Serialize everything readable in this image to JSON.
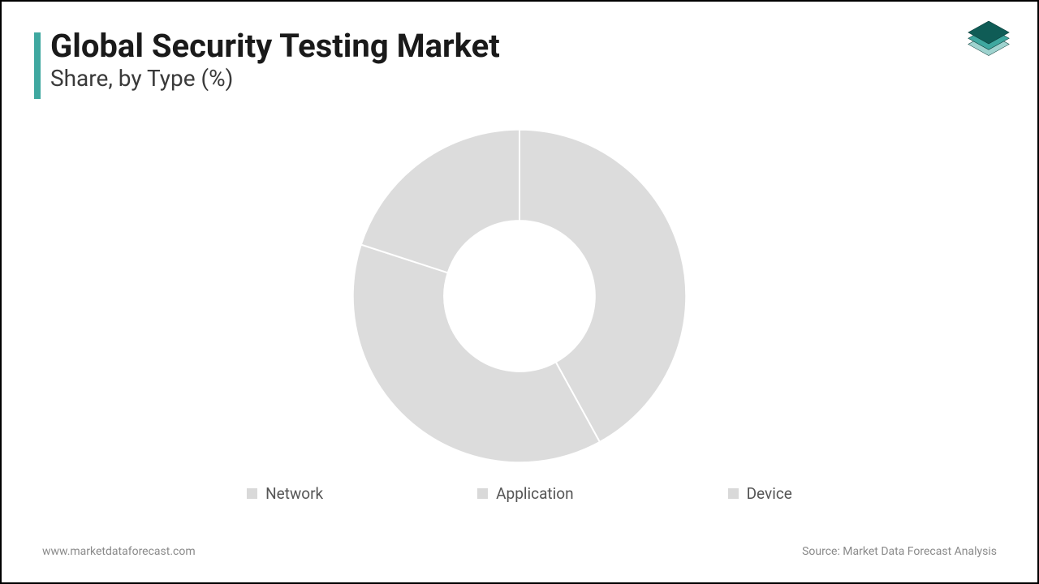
{
  "header": {
    "title": "Global Security Testing Market",
    "subtitle": "Share, by Type (%)",
    "accent_color": "#3fa8a0",
    "title_color": "#1a1a1a",
    "subtitle_color": "#3a3a3a",
    "title_fontsize": 40,
    "subtitle_fontsize": 28
  },
  "logo": {
    "layer_colors": [
      "#0f5c56",
      "#3fa8a0",
      "#9fd3cf"
    ]
  },
  "chart": {
    "type": "donut",
    "outer_radius": 210,
    "inner_radius": 95,
    "gap_color": "#ffffff",
    "gap_width": 2,
    "background_color": "#ffffff",
    "slices": [
      {
        "label": "Network",
        "value": 42,
        "color": "#dcdcdc"
      },
      {
        "label": "Application",
        "value": 38,
        "color": "#dcdcdc"
      },
      {
        "label": "Device",
        "value": 20,
        "color": "#dcdcdc"
      }
    ]
  },
  "legend": {
    "fontsize": 19,
    "text_color": "#555555",
    "swatch_color": "#d9d9d9",
    "items": [
      "Network",
      "Application",
      "Device"
    ]
  },
  "footer": {
    "left": "www.marketdataforecast.com",
    "right": "Source: Market Data Forecast Analysis",
    "color": "#8a8a8a",
    "fontsize": 14
  },
  "frame": {
    "border_color": "#000000",
    "border_width": 2
  }
}
